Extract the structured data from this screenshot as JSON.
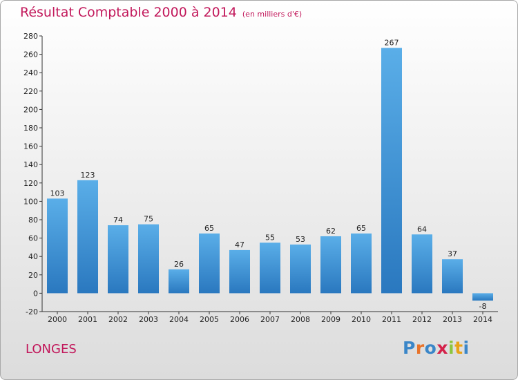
{
  "header": {
    "title": "Résultat Comptable 2000 à 2014",
    "subtitle": "(en milliers d'€)"
  },
  "footer": {
    "place": "LONGES",
    "logo_letters": [
      "P",
      "r",
      "o",
      "x",
      "i",
      "t",
      "i"
    ],
    "logo_colors": [
      "#3a86c8",
      "#e8732a",
      "#3a86c8",
      "#d4224a",
      "#8cc63f",
      "#e8a317",
      "#3a86c8"
    ]
  },
  "chart_data": {
    "type": "bar",
    "title": "Résultat Comptable 2000 à 2014",
    "subtitle": "(en milliers d'€)",
    "categories": [
      "2000",
      "2001",
      "2002",
      "2003",
      "2004",
      "2005",
      "2006",
      "2007",
      "2008",
      "2009",
      "2010",
      "2011",
      "2012",
      "2013",
      "2014"
    ],
    "values": [
      103,
      123,
      74,
      75,
      26,
      65,
      47,
      55,
      53,
      62,
      65,
      267,
      64,
      37,
      -8
    ],
    "ylim": [
      -20,
      280
    ],
    "yticks": [
      -20,
      0,
      20,
      40,
      60,
      80,
      100,
      120,
      140,
      160,
      180,
      200,
      220,
      240,
      260,
      280
    ],
    "grid": false,
    "bar_color": "#3d95db"
  }
}
